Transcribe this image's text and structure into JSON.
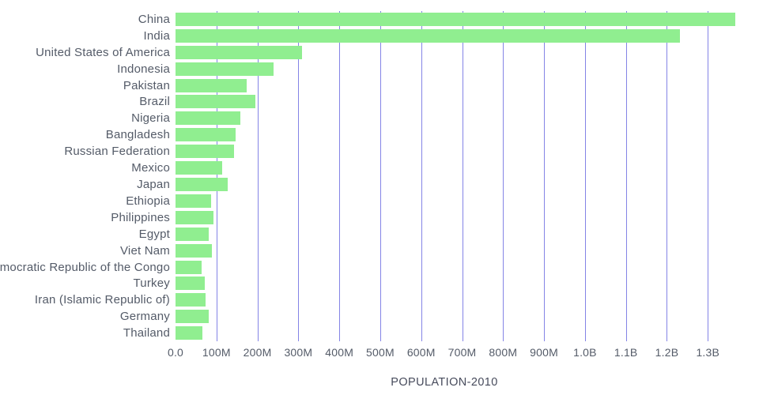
{
  "chart_data": {
    "type": "bar",
    "orientation": "horizontal",
    "title": "POPULATION-2010",
    "xlabel": "",
    "ylabel": "",
    "legend": "none",
    "grid": "vertical gridlines at each x tick",
    "categories": [
      "China",
      "India",
      "United States of America",
      "Indonesia",
      "Pakistan",
      "Brazil",
      "Nigeria",
      "Bangladesh",
      "Russian Federation",
      "Mexico",
      "Japan",
      "Ethiopia",
      "Philippines",
      "Egypt",
      "Viet Nam",
      "Democratic Republic of the Congo",
      "Turkey",
      "Iran (Islamic Republic of)",
      "Germany",
      "Thailand"
    ],
    "values_millions": [
      1368,
      1232,
      309,
      240,
      174,
      195,
      158,
      147,
      143,
      114,
      128,
      87,
      93,
      82,
      88,
      64,
      72,
      74,
      82,
      66
    ],
    "xmax_millions": 1425,
    "ticks": [
      {
        "label": "0.0",
        "value": 0
      },
      {
        "label": "100M",
        "value": 100
      },
      {
        "label": "200M",
        "value": 200
      },
      {
        "label": "300M",
        "value": 300
      },
      {
        "label": "400M",
        "value": 400
      },
      {
        "label": "500M",
        "value": 500
      },
      {
        "label": "600M",
        "value": 600
      },
      {
        "label": "700M",
        "value": 700
      },
      {
        "label": "800M",
        "value": 800
      },
      {
        "label": "900M",
        "value": 900
      },
      {
        "label": "1.0B",
        "value": 1000
      },
      {
        "label": "1.1B",
        "value": 1100
      },
      {
        "label": "1.2B",
        "value": 1200
      },
      {
        "label": "1.3B",
        "value": 1300
      }
    ],
    "colors": {
      "bar": "#90ee90",
      "gridline": "#6f6fe2",
      "label_text": "#545b68",
      "title_text": "#474b5c",
      "background": "#ffffff"
    }
  }
}
